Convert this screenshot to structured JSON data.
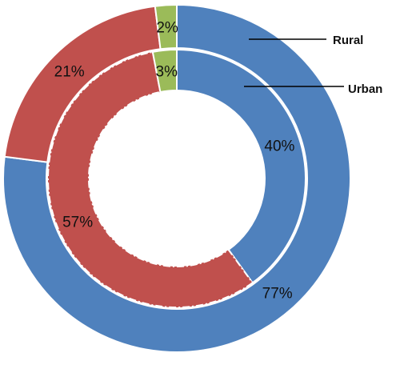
{
  "chart_data": {
    "type": "pie",
    "title": "",
    "categories": [
      "Blue",
      "Red",
      "Green"
    ],
    "series": [
      {
        "name": "Rural",
        "values": [
          77,
          21,
          2
        ]
      },
      {
        "name": "Urban",
        "values": [
          40,
          57,
          3
        ]
      }
    ],
    "colors": [
      "#4F81BD",
      "#C0504D",
      "#9BBB59"
    ],
    "legend": "top-right callouts"
  }
}
